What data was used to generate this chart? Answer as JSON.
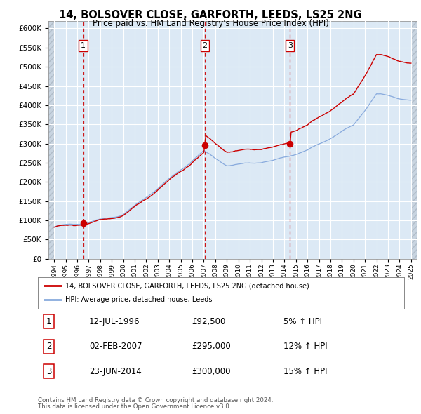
{
  "title1": "14, BOLSOVER CLOSE, GARFORTH, LEEDS, LS25 2NG",
  "title2": "Price paid vs. HM Land Registry's House Price Index (HPI)",
  "background_plot": "#dce9f5",
  "background_fig": "#ffffff",
  "hatch_color": "#c0ccd8",
  "grid_color": "#ffffff",
  "dashed_line_color": "#cc0000",
  "sale_color": "#cc0000",
  "hpi_color": "#88aadd",
  "legend_label_sale": "14, BOLSOVER CLOSE, GARFORTH, LEEDS, LS25 2NG (detached house)",
  "legend_label_hpi": "HPI: Average price, detached house, Leeds",
  "transactions": [
    {
      "num": 1,
      "date": "12-JUL-1996",
      "price": 92500,
      "year": 1996.53,
      "pct": "5%",
      "dir": "↑"
    },
    {
      "num": 2,
      "date": "02-FEB-2007",
      "price": 295000,
      "year": 2007.09,
      "pct": "12%",
      "dir": "↑"
    },
    {
      "num": 3,
      "date": "23-JUN-2014",
      "price": 300000,
      "year": 2014.48,
      "pct": "15%",
      "dir": "↑"
    }
  ],
  "footer1": "Contains HM Land Registry data © Crown copyright and database right 2024.",
  "footer2": "This data is licensed under the Open Government Licence v3.0.",
  "ylim": [
    0,
    620000
  ],
  "yticks": [
    0,
    50000,
    100000,
    150000,
    200000,
    250000,
    300000,
    350000,
    400000,
    450000,
    500000,
    550000,
    600000
  ],
  "xlim_start": 1993.5,
  "xlim_end": 2025.5,
  "data_start": 1994,
  "data_end": 2025
}
